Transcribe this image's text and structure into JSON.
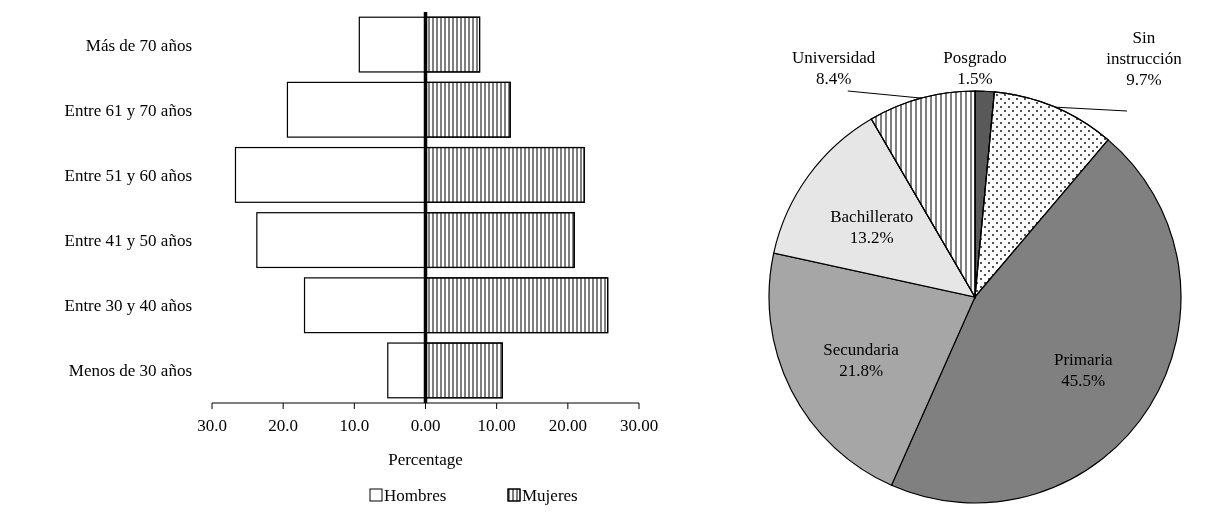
{
  "chart_data": [
    {
      "type": "bar",
      "orientation": "horizontal",
      "stacked": true,
      "ref_lines": [
        {
          "axis": "x",
          "value": 0,
          "color": "#000000"
        }
      ],
      "categories": [
        "Más de 70 años",
        "Entre 61 y 70 años",
        "Entre 51 y 60 años",
        "Entre 41 y 50 años",
        "Entre 30 y 40 años",
        "Menos de 30 años"
      ],
      "xlabel": "Percentage",
      "xlim": [
        -30,
        30
      ],
      "xticks": [
        {
          "value": -30,
          "label": "30.0"
        },
        {
          "value": -20,
          "label": "20.0"
        },
        {
          "value": -10,
          "label": "10.0"
        },
        {
          "value": 0,
          "label": "0.00"
        },
        {
          "value": 10,
          "label": "10.00"
        },
        {
          "value": 20,
          "label": "20.00"
        },
        {
          "value": 30,
          "label": "30.00"
        }
      ],
      "legend": "bottom",
      "grid": false,
      "series": [
        {
          "name": "Hombres",
          "color": "#ffffff",
          "values": [
            -9.3,
            -19.4,
            -26.7,
            -23.7,
            -17.0,
            -5.3
          ]
        },
        {
          "name": "Mujeres",
          "color": "#ffffff",
          "values": [
            7.6,
            11.9,
            22.3,
            20.9,
            25.6,
            10.8
          ]
        }
      ]
    },
    {
      "type": "pie",
      "categories": [
        "Posgrado",
        "Sin instrucción",
        "Primaria",
        "Secundaria",
        "Bachillerato",
        "Universidad"
      ],
      "values": [
        1.5,
        9.7,
        45.5,
        21.8,
        13.2,
        8.4
      ],
      "colors": [
        "#595959",
        "#ffffff",
        "#808080",
        "#a6a6a6",
        "#e6e6e6",
        "#ffffff"
      ],
      "value_labels": [
        "1.5%",
        "9.7%",
        "45.5%",
        "21.8%",
        "13.2%",
        "8.4%"
      ]
    }
  ]
}
